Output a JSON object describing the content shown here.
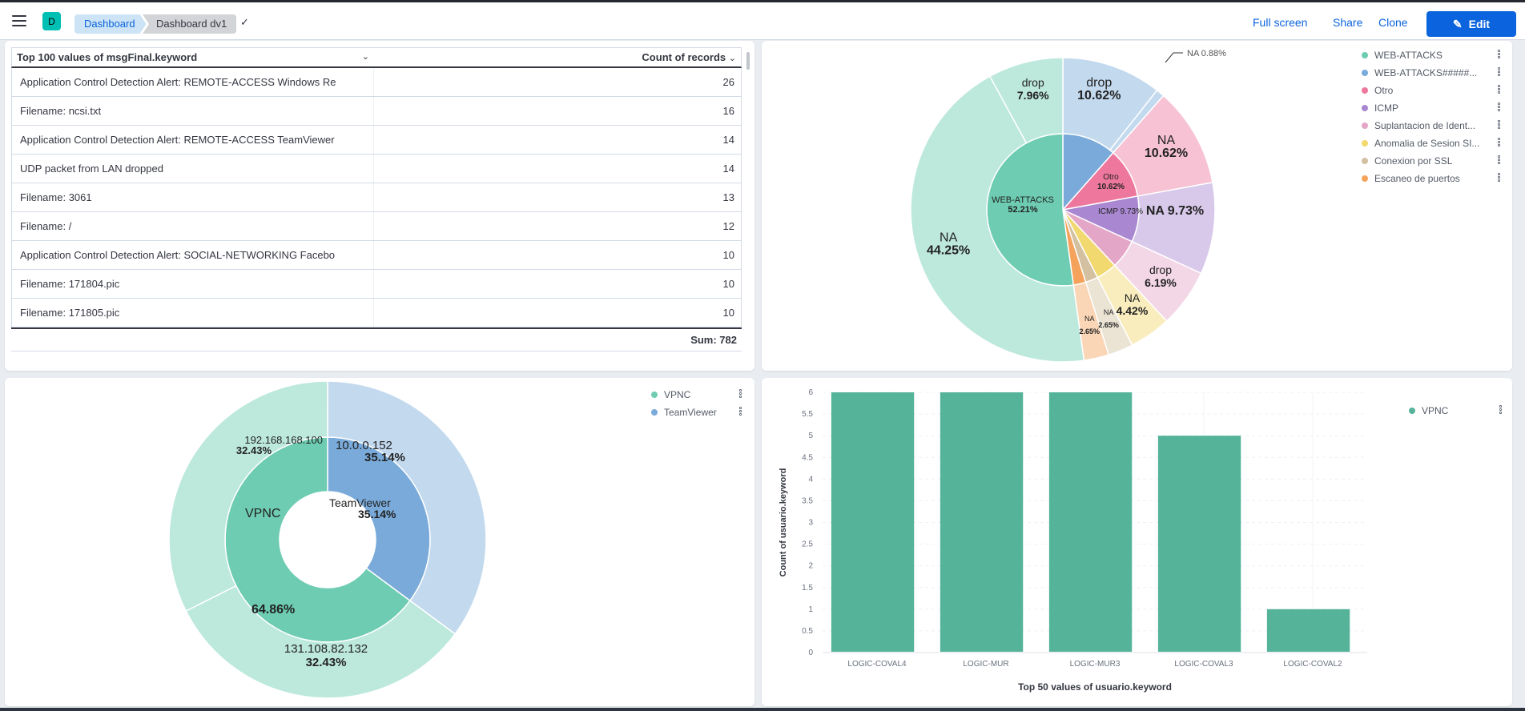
{
  "header": {
    "space_initial": "D",
    "breadcrumbs": [
      "Dashboard",
      "Dashboard dv1"
    ],
    "actions": {
      "full_screen": "Full screen",
      "share": "Share",
      "clone": "Clone",
      "edit": "Edit"
    },
    "accent_color": "#0b64dd"
  },
  "table_panel": {
    "columns": [
      "Top 100 values of msgFinal.keyword",
      "Count of records"
    ],
    "rows": [
      {
        "label": "Application Control Detection Alert: REMOTE-ACCESS Windows Re",
        "count": "26"
      },
      {
        "label": "Filename: ncsi.txt",
        "count": "16"
      },
      {
        "label": "Application Control Detection Alert: REMOTE-ACCESS TeamViewer",
        "count": "14"
      },
      {
        "label": "UDP packet from LAN dropped",
        "count": "14"
      },
      {
        "label": "Filename: 3061",
        "count": "13"
      },
      {
        "label": "Filename: /",
        "count": "12"
      },
      {
        "label": "Application Control Detection Alert: SOCIAL-NETWORKING Facebo",
        "count": "10"
      },
      {
        "label": "Filename: 171804.pic",
        "count": "10"
      },
      {
        "label": "Filename: 171805.pic",
        "count": "10"
      }
    ],
    "footer": "Sum: 782"
  },
  "chart_data": [
    {
      "type": "pie",
      "title": "",
      "rings": [
        {
          "level": "inner",
          "slices": [
            {
              "label": "WEB-ATTACKS",
              "value": 52.21,
              "color": "#6dccb1"
            },
            {
              "label": "WEB-ATTACKS#####...",
              "value": 11.5,
              "color": "#79aad9"
            },
            {
              "label": "Otro",
              "value": 10.62,
              "color": "#ee789d"
            },
            {
              "label": "ICMP",
              "value": 9.73,
              "color": "#a987d1"
            },
            {
              "label": "Suplantacion de Ident...",
              "value": 6.19,
              "color": "#e4a6c7"
            },
            {
              "label": "Anomalia de Sesion SI...",
              "value": 4.42,
              "color": "#f1d86f"
            },
            {
              "label": "Conexion por SSL",
              "value": 2.65,
              "color": "#d2c0a0"
            },
            {
              "label": "Escaneo de puertos",
              "value": 2.65,
              "color": "#f5a35c"
            }
          ]
        },
        {
          "level": "outer",
          "slices": [
            {
              "label": "drop",
              "value": 10.62,
              "parent": "WEB-ATTACKS#####..."
            },
            {
              "label": "NA",
              "value": 0.88,
              "parent": "WEB-ATTACKS#####..."
            },
            {
              "label": "NA",
              "value": 10.62,
              "parent": "Otro"
            },
            {
              "label": "NA",
              "value": 9.73,
              "parent": "ICMP"
            },
            {
              "label": "drop",
              "value": 6.19,
              "parent": "Suplantacion de Ident..."
            },
            {
              "label": "NA",
              "value": 4.42,
              "parent": "Anomalia de Sesion SI..."
            },
            {
              "label": "NA",
              "value": 2.65,
              "parent": "Conexion por SSL"
            },
            {
              "label": "NA",
              "value": 2.65,
              "parent": "Escaneo de puertos"
            },
            {
              "label": "NA",
              "value": 44.25,
              "parent": "WEB-ATTACKS"
            },
            {
              "label": "drop",
              "value": 7.96,
              "parent": "WEB-ATTACKS"
            }
          ]
        }
      ],
      "legend": [
        "WEB-ATTACKS",
        "WEB-ATTACKS#####...",
        "Otro",
        "ICMP",
        "Suplantacion de Ident...",
        "Anomalia de Sesion SI...",
        "Conexion por SSL",
        "Escaneo de puertos"
      ],
      "legend_position": "top-right"
    },
    {
      "type": "pie",
      "donut": true,
      "rings": [
        {
          "level": "inner",
          "slices": [
            {
              "label": "TeamViewer",
              "value": 35.14,
              "color": "#79aad9"
            },
            {
              "label": "VPNC",
              "value": 64.86,
              "color": "#6dccb1"
            }
          ]
        },
        {
          "level": "outer",
          "slices": [
            {
              "label": "10.0.0.152",
              "value": 35.14,
              "parent": "TeamViewer"
            },
            {
              "label": "131.108.82.132",
              "value": 32.43,
              "parent": "VPNC"
            },
            {
              "label": "192.168.168.100",
              "value": 32.43,
              "parent": "VPNC"
            }
          ]
        }
      ],
      "legend": [
        "VPNC",
        "TeamViewer"
      ],
      "legend_position": "top-right"
    },
    {
      "type": "bar",
      "categories": [
        "LOGIC-COVAL4",
        "LOGIC-MUR",
        "LOGIC-MUR3",
        "LOGIC-COVAL3",
        "LOGIC-COVAL2"
      ],
      "series": [
        {
          "name": "VPNC",
          "values": [
            6,
            6,
            6,
            5,
            1
          ],
          "color": "#54b399"
        }
      ],
      "xlabel": "Top 50 values of usuario.keyword",
      "ylabel": "Count of usuario.keyword",
      "ylim": [
        0,
        6
      ],
      "yticks": [
        "0",
        "0.5",
        "1",
        "1.5",
        "2",
        "2.5",
        "3",
        "3.5",
        "4",
        "4.5",
        "5",
        "5.5",
        "6"
      ],
      "grid": true,
      "legend": [
        "VPNC"
      ],
      "legend_position": "top-right"
    }
  ]
}
